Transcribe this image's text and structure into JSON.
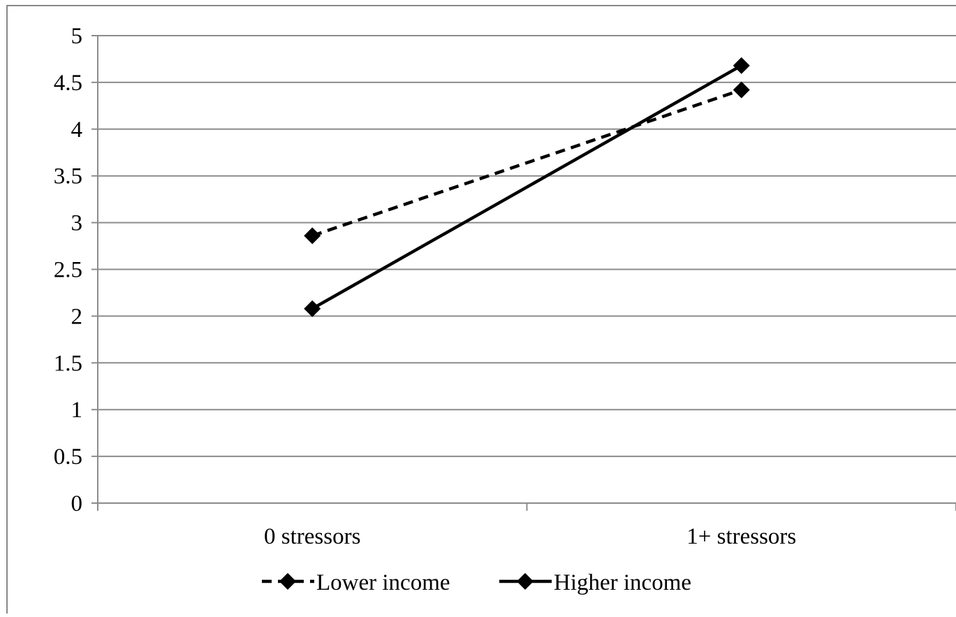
{
  "chart_data": {
    "type": "line",
    "title": "",
    "xlabel": "",
    "ylabel": "",
    "categories": [
      "0 stressors",
      "1+ stressors"
    ],
    "ylim": [
      0,
      5
    ],
    "yticks": [
      "0",
      "0.5",
      "1",
      "1.5",
      "2",
      "2.5",
      "3",
      "3.5",
      "4",
      "4.5",
      "5"
    ],
    "grid": true,
    "legend_position": "bottom",
    "series": [
      {
        "name": "Lower income",
        "values": [
          2.86,
          4.42
        ],
        "line_style": "dashed",
        "marker": "diamond",
        "color": "#000000"
      },
      {
        "name": "Higher income",
        "values": [
          2.08,
          4.68
        ],
        "line_style": "solid",
        "marker": "diamond",
        "color": "#000000"
      }
    ]
  }
}
